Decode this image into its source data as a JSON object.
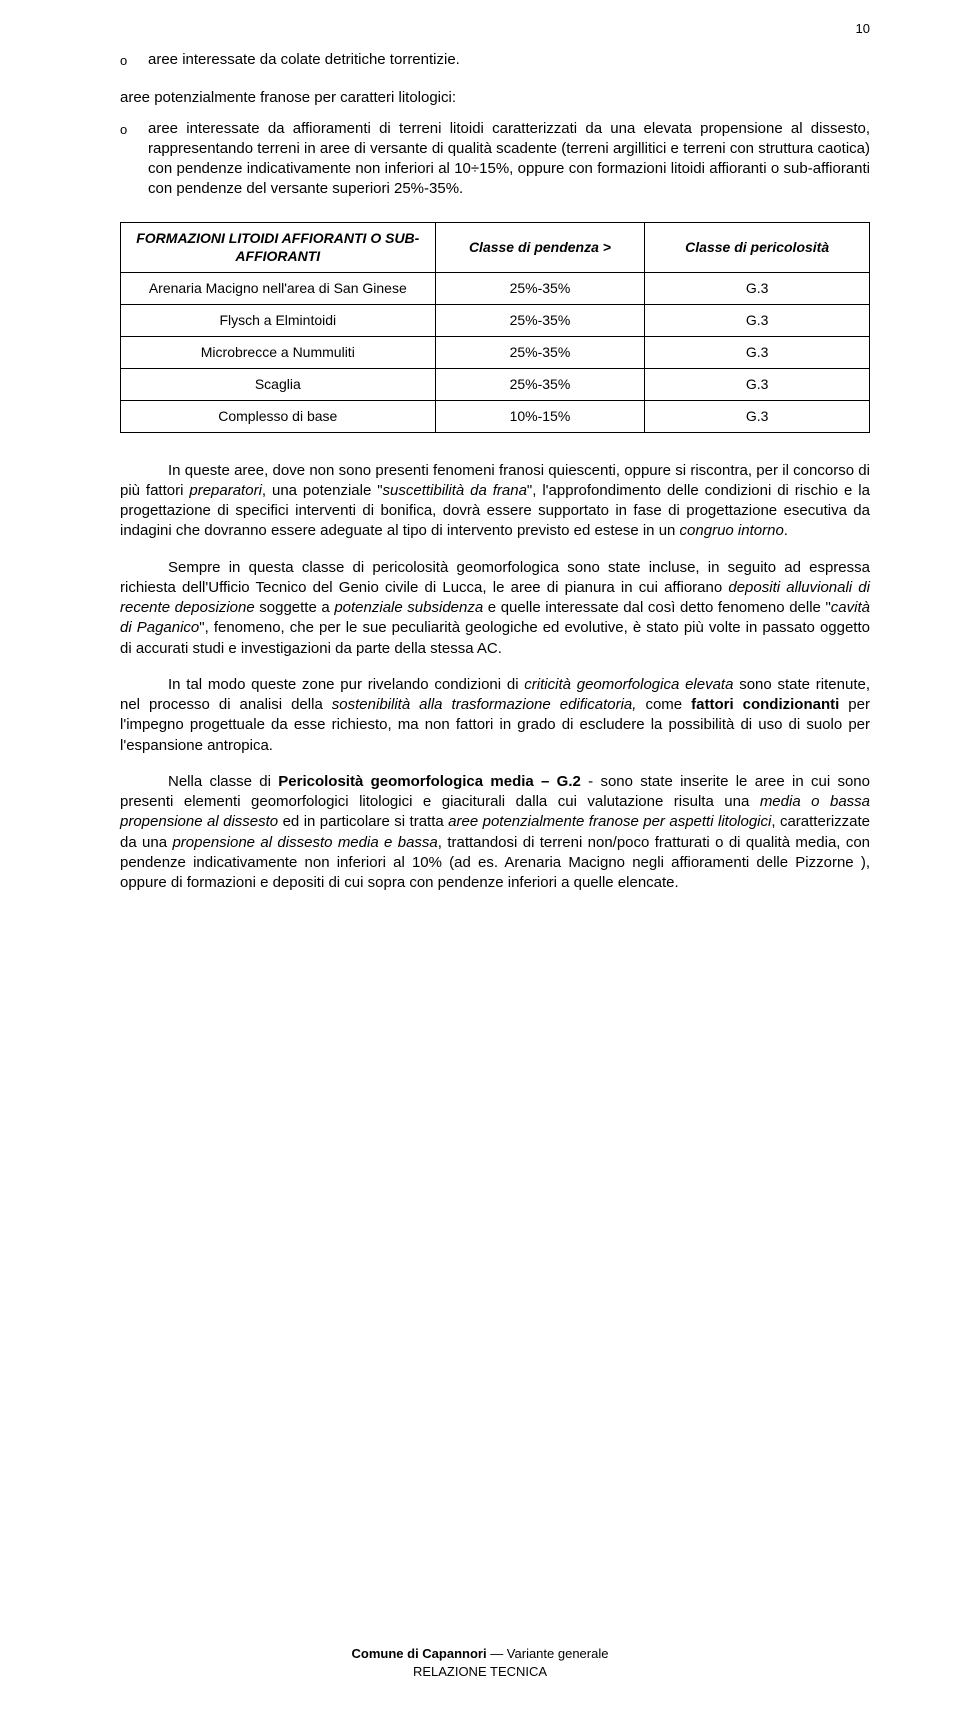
{
  "page_number": "10",
  "bullets": [
    {
      "text": "aree interessate da colate detritiche torrentizie."
    },
    {
      "text": "aree potenzialmente franose per caratteri litologici:"
    }
  ],
  "sub_bullet": {
    "prefix": "aree interessate da affioramenti di terreni litoidi caratterizzati da una elevata propensione al dissesto, rappresentando terreni in aree di versante di qualità scadente (terreni argillitici e terreni con struttura caotica) con pendenze indicativamente non inferiori al 10÷15%, oppure con formazioni litoidi affioranti o sub-affioranti con pendenze del versante superiori 25%-35%."
  },
  "table": {
    "headers": [
      "FORMAZIONI LITOIDI AFFIORANTI O SUB-AFFIORANTI",
      "Classe di pendenza >",
      "Classe di pericolosità"
    ],
    "rows": [
      [
        "Arenaria Macigno nell'area di San Ginese",
        "25%-35%",
        "G.3"
      ],
      [
        "Flysch a Elmintoidi",
        "25%-35%",
        "G.3"
      ],
      [
        "Microbrecce a Nummuliti",
        "25%-35%",
        "G.3"
      ],
      [
        "Scaglia",
        "25%-35%",
        "G.3"
      ],
      [
        "Complesso di base",
        "10%-15%",
        "G.3"
      ]
    ]
  },
  "paragraphs": {
    "p1_a": "In queste aree, dove non sono presenti fenomeni franosi quiescenti, oppure si riscontra, per il concorso di più fattori ",
    "p1_b": "preparatori",
    "p1_c": ", una potenziale \"",
    "p1_d": "suscettibilità da frana",
    "p1_e": "\", l'approfondimento delle condizioni di rischio e la progettazione di specifici interventi di bonifica, dovrà essere supportato in fase di progettazione esecutiva da indagini che dovranno essere adeguate al tipo di intervento previsto ed estese in un ",
    "p1_f": "congruo intorno",
    "p1_g": ".",
    "p2_a": "Sempre in questa classe di pericolosità geomorfologica sono state incluse, in seguito ad espressa richiesta dell'Ufficio Tecnico del Genio civile di Lucca, le aree di pianura in cui affiorano ",
    "p2_b": "depositi alluvionali di recente deposizione",
    "p2_c": " soggette a ",
    "p2_d": "potenziale subsidenza",
    "p2_e": " e quelle interessate dal così detto fenomeno delle \"",
    "p2_f": "cavità di Paganico",
    "p2_g": "\", fenomeno, che per le sue peculiarità geologiche ed evolutive, è stato più volte in passato oggetto di accurati studi e investigazioni da parte della stessa AC.",
    "p3_a": "In tal modo queste zone pur rivelando condizioni di ",
    "p3_b": "criticità geomorfologica elevata",
    "p3_c": " sono state ritenute, nel processo di analisi della ",
    "p3_d": "sostenibilità alla trasformazione edificatoria,",
    "p3_e": " come ",
    "p3_f": "fattori condizionanti",
    "p3_g": " per l'impegno progettuale da esse richiesto, ma non fattori in grado di escludere la possibilità di uso di suolo per l'espansione antropica.",
    "p4_a": "Nella classe di ",
    "p4_b": "Pericolosità geomorfologica media – G.2",
    "p4_c": " - sono state inserite le aree in cui sono presenti elementi geomorfologici litologici e giaciturali dalla cui valutazione risulta una ",
    "p4_d": "media o bassa propensione al dissesto",
    "p4_e": " ed in particolare si tratta ",
    "p4_f": "aree potenzialmente franose per aspetti litologici",
    "p4_g": ", caratterizzate da una ",
    "p4_h": "propensione al dissesto media e bassa",
    "p4_i": ", trattandosi di terreni non/poco fratturati o di qualità media, con pendenze indicativamente non inferiori al 10% (ad es. Arenaria Macigno negli affioramenti delle Pizzorne ), oppure di formazioni e depositi di cui sopra con pendenze inferiori a quelle elencate."
  },
  "footer": {
    "line1_a": "Comune di Capannori",
    "line1_b": " — Variante generale",
    "line2": "RELAZIONE TECNICA"
  }
}
